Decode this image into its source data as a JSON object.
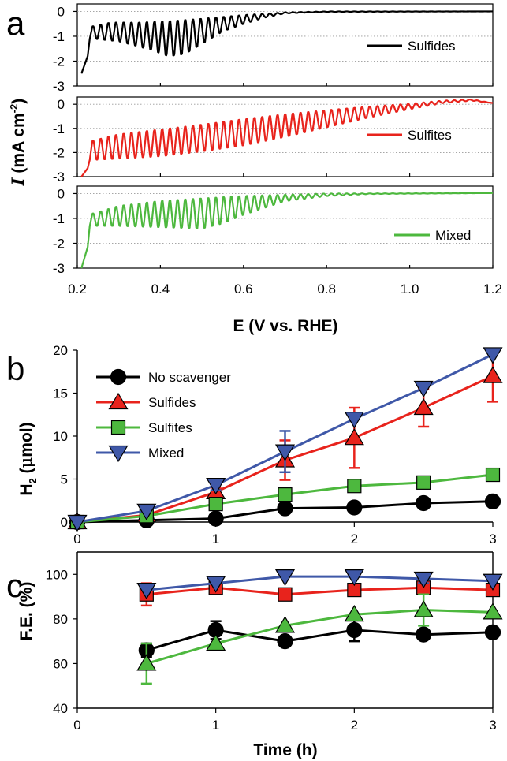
{
  "figure": {
    "panel_labels": [
      "a",
      "b",
      "c"
    ]
  },
  "chart_data": [
    {
      "panel": "a",
      "type": "line",
      "ylabel_italic": "I",
      "ylabel_rest": " (mA cm",
      "ylabel_sup": "-2",
      "ylabel_close": ")",
      "xlabel": "E (V vs. RHE)",
      "xlim": [
        0.2,
        1.2
      ],
      "xticks": [
        "0.2",
        "0.4",
        "0.6",
        "0.8",
        "1.0",
        "1.2"
      ],
      "ylim": [
        -3,
        0.3
      ],
      "yticks": [
        "0",
        "-1",
        "-2",
        "-3"
      ],
      "grid": "dotted horizontal",
      "subplots": [
        {
          "name": "Sulfides",
          "color": "#000000",
          "start": [
            0.21,
            -2.5
          ],
          "envelope_top": [
            [
              0.24,
              -0.6
            ],
            [
              0.28,
              -0.45
            ],
            [
              0.35,
              -0.45
            ],
            [
              0.42,
              -0.4
            ],
            [
              0.5,
              -0.3
            ],
            [
              0.6,
              -0.15
            ],
            [
              0.7,
              -0.04
            ],
            [
              0.8,
              0.0
            ],
            [
              1.2,
              0.0
            ]
          ],
          "envelope_bottom": [
            [
              0.24,
              -1.1
            ],
            [
              0.3,
              -1.2
            ],
            [
              0.38,
              -1.55
            ],
            [
              0.42,
              -1.8
            ],
            [
              0.46,
              -1.7
            ],
            [
              0.5,
              -1.3
            ],
            [
              0.55,
              -0.8
            ],
            [
              0.6,
              -0.5
            ],
            [
              0.65,
              -0.25
            ],
            [
              0.7,
              -0.08
            ],
            [
              0.8,
              -0.02
            ],
            [
              1.2,
              0.0
            ]
          ]
        },
        {
          "name": "Sulfites",
          "color": "#e8231c",
          "start": [
            0.21,
            -3.0
          ],
          "envelope_top": [
            [
              0.24,
              -1.5
            ],
            [
              0.3,
              -1.25
            ],
            [
              0.4,
              -1.05
            ],
            [
              0.5,
              -0.85
            ],
            [
              0.6,
              -0.62
            ],
            [
              0.7,
              -0.42
            ],
            [
              0.8,
              -0.25
            ],
            [
              0.9,
              -0.1
            ],
            [
              1.0,
              0.02
            ],
            [
              1.08,
              0.15
            ],
            [
              1.15,
              0.2
            ],
            [
              1.2,
              0.05
            ]
          ],
          "envelope_bottom": [
            [
              0.24,
              -2.3
            ],
            [
              0.3,
              -2.25
            ],
            [
              0.4,
              -2.15
            ],
            [
              0.5,
              -1.95
            ],
            [
              0.6,
              -1.7
            ],
            [
              0.7,
              -1.35
            ],
            [
              0.8,
              -0.95
            ],
            [
              0.9,
              -0.55
            ],
            [
              1.0,
              -0.2
            ],
            [
              1.08,
              0.05
            ],
            [
              1.15,
              0.15
            ],
            [
              1.2,
              0.05
            ]
          ]
        },
        {
          "name": "Mixed",
          "color": "#4db83e",
          "start": [
            0.21,
            -3.0
          ],
          "envelope_top": [
            [
              0.24,
              -0.8
            ],
            [
              0.3,
              -0.5
            ],
            [
              0.4,
              -0.3
            ],
            [
              0.5,
              -0.2
            ],
            [
              0.6,
              -0.1
            ],
            [
              0.7,
              -0.05
            ],
            [
              0.8,
              0.0
            ],
            [
              1.2,
              0.02
            ]
          ],
          "envelope_bottom": [
            [
              0.24,
              -1.3
            ],
            [
              0.3,
              -1.3
            ],
            [
              0.4,
              -1.35
            ],
            [
              0.5,
              -1.4
            ],
            [
              0.55,
              -1.2
            ],
            [
              0.6,
              -0.85
            ],
            [
              0.7,
              -0.3
            ],
            [
              0.8,
              -0.1
            ],
            [
              0.9,
              -0.02
            ],
            [
              1.2,
              0.02
            ]
          ]
        }
      ]
    },
    {
      "panel": "b",
      "type": "line",
      "ylabel_main": "H",
      "ylabel_sub": "2",
      "ylabel_rest": " (",
      "ylabel_greek": "μ",
      "ylabel_unit": "mol)",
      "xlim": [
        0,
        3
      ],
      "ylim": [
        0,
        20
      ],
      "xticks": [
        "0",
        "1",
        "2",
        "3"
      ],
      "yticks": [
        "0",
        "5",
        "10",
        "15",
        "20"
      ],
      "legend": "top-left",
      "x": [
        0,
        0.5,
        1,
        1.5,
        2,
        2.5,
        3
      ],
      "series": [
        {
          "name": "No scavenger",
          "marker": "circle",
          "color": "#000000",
          "line": "#000000",
          "values": [
            0,
            0.2,
            0.4,
            1.6,
            1.7,
            2.2,
            2.4
          ],
          "err": [
            0,
            0,
            0,
            0,
            0,
            0,
            0
          ]
        },
        {
          "name": "Sulfides",
          "marker": "triangle-up",
          "color": "#e8231c",
          "line": "#e8231c",
          "values": [
            0,
            0.8,
            3.5,
            7.2,
            9.8,
            13.3,
            17.0
          ],
          "err": [
            0,
            0,
            0.5,
            2.3,
            3.5,
            2.2,
            3.0
          ]
        },
        {
          "name": "Sulfites",
          "marker": "square",
          "color": "#4db83e",
          "line": "#4db83e",
          "values": [
            0,
            0.7,
            2.1,
            3.2,
            4.2,
            4.6,
            5.5
          ],
          "err": [
            0,
            0,
            0,
            0,
            0,
            0,
            0
          ]
        },
        {
          "name": "Mixed",
          "marker": "triangle-down",
          "color": "#3f58a8",
          "line": "#3f58a8",
          "values": [
            0,
            1.3,
            4.3,
            8.2,
            12.0,
            15.6,
            19.5
          ],
          "err": [
            0,
            0,
            0.6,
            2.4,
            0,
            0,
            0
          ]
        }
      ]
    },
    {
      "panel": "c",
      "type": "line",
      "ylabel": "F.E. (%)",
      "xlabel": "Time (h)",
      "xlim": [
        0,
        3
      ],
      "ylim": [
        40,
        110
      ],
      "xticks": [
        "0",
        "1",
        "2",
        "3"
      ],
      "yticks": [
        "40",
        "60",
        "80",
        "100"
      ],
      "x": [
        0.5,
        1,
        1.5,
        2,
        2.5,
        3
      ],
      "series": [
        {
          "name": "No scavenger",
          "marker": "circle",
          "color": "#000000",
          "line": "#000000",
          "values": [
            66,
            75,
            70,
            75,
            73,
            74
          ],
          "err": [
            3,
            4,
            0,
            5,
            0,
            0
          ]
        },
        {
          "name": "Sulfides",
          "marker": "square",
          "color": "#e8231c",
          "line": "#e8231c",
          "values": [
            91,
            94,
            91,
            93,
            94,
            93
          ],
          "err": [
            5,
            0,
            0,
            0,
            2,
            0
          ]
        },
        {
          "name": "Sulfites",
          "marker": "triangle-up",
          "color": "#4db83e",
          "line": "#4db83e",
          "values": [
            60,
            69,
            77,
            82,
            84,
            83
          ],
          "err": [
            9,
            0,
            0,
            0,
            7,
            0
          ]
        },
        {
          "name": "Mixed",
          "marker": "triangle-down",
          "color": "#3f58a8",
          "line": "#3f58a8",
          "values": [
            93,
            96,
            99,
            99,
            98,
            97
          ],
          "err": [
            0,
            0,
            0,
            0,
            2,
            0
          ]
        }
      ]
    }
  ]
}
